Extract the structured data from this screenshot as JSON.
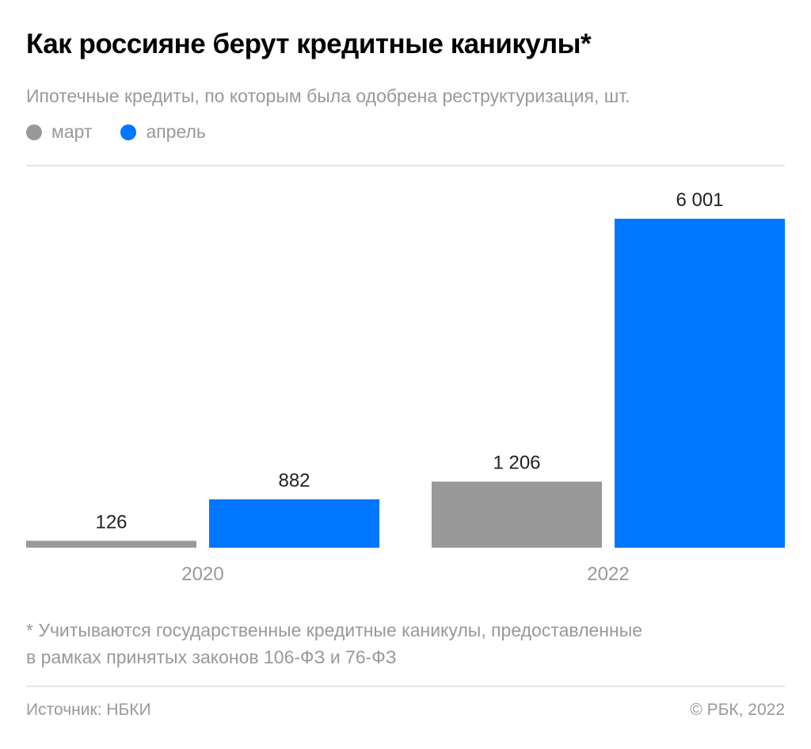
{
  "title": "Как россияне берут кредитные каникулы*",
  "subtitle": "Ипотечные кредиты, по которым была одобрена реструктуризация, шт.",
  "footnote": [
    "* Учитываются государственные кредитные каникулы, предоставленные",
    "в рамках принятых законов 106-ФЗ и 76-ФЗ"
  ],
  "source": "Источник: НБКИ",
  "copyright": "© РБК, 2022",
  "chart_data": {
    "type": "bar",
    "title": "Как россияне берут кредитные каникулы*",
    "categories": [
      "2020",
      "2022"
    ],
    "series": [
      {
        "name": "март",
        "color": "#999999",
        "values": [
          126,
          1206
        ],
        "labels": [
          "126",
          "1 206"
        ]
      },
      {
        "name": "апрель",
        "color": "#0077ff",
        "values": [
          882,
          6001
        ],
        "labels": [
          "882",
          "6 001"
        ]
      }
    ],
    "ylim": [
      0,
      6001
    ],
    "grid": false,
    "legend": "top-left"
  }
}
